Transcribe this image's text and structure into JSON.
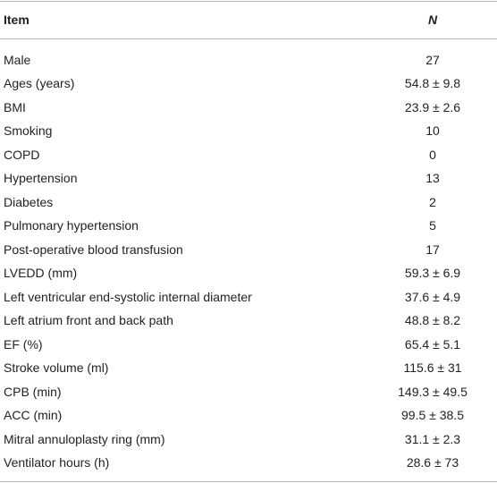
{
  "table": {
    "header": [
      "Item",
      "N"
    ],
    "rows": [
      [
        "Male",
        "27"
      ],
      [
        "Ages (years)",
        "54.8 ± 9.8"
      ],
      [
        "BMI",
        "23.9 ± 2.6"
      ],
      [
        "Smoking",
        "10"
      ],
      [
        "COPD",
        "0"
      ],
      [
        "Hypertension",
        "13"
      ],
      [
        "Diabetes",
        "2"
      ],
      [
        "Pulmonary hypertension",
        "5"
      ],
      [
        "Post-operative blood transfusion",
        "17"
      ],
      [
        "LVEDD (mm)",
        "59.3 ± 6.9"
      ],
      [
        "Left ventricular end-systolic internal diameter",
        "37.6 ± 4.9"
      ],
      [
        "Left atrium front and back path",
        "48.8 ± 8.2"
      ],
      [
        "EF (%)",
        "65.4 ± 5.1"
      ],
      [
        "Stroke volume (ml)",
        "115.6 ± 31"
      ],
      [
        "CPB (min)",
        "149.3 ± 49.5"
      ],
      [
        "ACC (min)",
        "99.5 ± 38.5"
      ],
      [
        "Mitral annuloplasty ring (mm)",
        "31.1 ± 2.3"
      ],
      [
        "Ventilator hours (h)",
        "28.6 ± 73"
      ]
    ]
  }
}
